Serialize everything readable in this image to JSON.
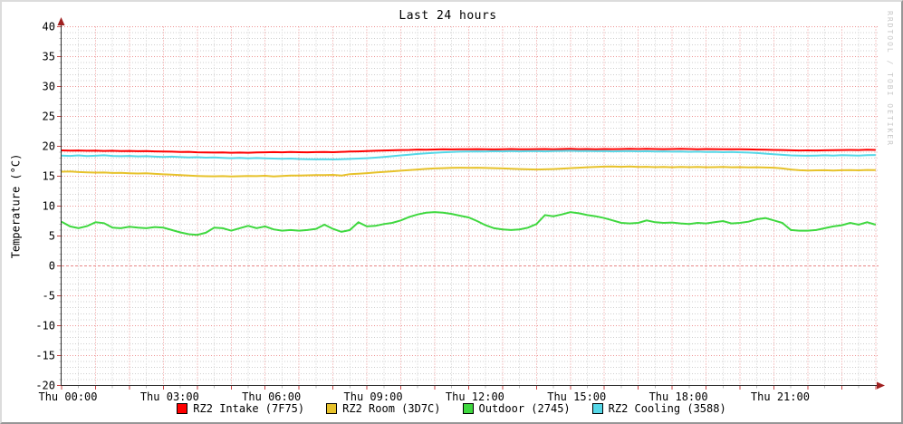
{
  "watermark": "RRDTOOL / TOBI OETIKER",
  "chart_data": {
    "type": "line",
    "title": "Last 24 hours",
    "ylabel": "Temperature (°C)",
    "x_unit": "hours",
    "x_start": 0,
    "x_end": 24,
    "x_step": 0.25,
    "ylim": [
      -20,
      40
    ],
    "grid": {
      "major_color": "#ee9393",
      "minor_color": "#cfcfcf",
      "zero_color": "#e88888",
      "major_x_every_hours": 1,
      "minor_x_every_hours": 0.5,
      "major_y_every_deg": 5,
      "minor_y_every_deg": 1
    },
    "axis_color": "#303030",
    "arrow_color": "#a02020",
    "tick_color": "#cc4444",
    "y_ticks": [
      40,
      35,
      30,
      25,
      20,
      15,
      10,
      5,
      0,
      -5,
      -10,
      -15,
      -20
    ],
    "x_labels": [
      {
        "hour": 0,
        "label": "Thu 00:00"
      },
      {
        "hour": 3,
        "label": "Thu 03:00"
      },
      {
        "hour": 6,
        "label": "Thu 06:00"
      },
      {
        "hour": 9,
        "label": "Thu 09:00"
      },
      {
        "hour": 12,
        "label": "Thu 12:00"
      },
      {
        "hour": 15,
        "label": "Thu 15:00"
      },
      {
        "hour": 18,
        "label": "Thu 18:00"
      },
      {
        "hour": 21,
        "label": "Thu 21:00"
      }
    ],
    "series": [
      {
        "name": "RZ2 Intake (7F75)",
        "color": "#ff0000",
        "values": [
          19.32,
          19.28,
          19.3,
          19.25,
          19.27,
          19.22,
          19.25,
          19.2,
          19.22,
          19.18,
          19.2,
          19.15,
          19.12,
          19.1,
          19.05,
          19.08,
          19.0,
          18.98,
          18.95,
          18.97,
          18.92,
          18.95,
          18.93,
          18.97,
          19.0,
          19.03,
          19.0,
          19.05,
          19.02,
          19.0,
          19.03,
          19.05,
          19.02,
          19.08,
          19.12,
          19.15,
          19.2,
          19.25,
          19.3,
          19.33,
          19.38,
          19.4,
          19.45,
          19.43,
          19.47,
          19.5,
          19.48,
          19.52,
          19.5,
          19.53,
          19.5,
          19.48,
          19.52,
          19.55,
          19.52,
          19.5,
          19.53,
          19.55,
          19.52,
          19.55,
          19.57,
          19.53,
          19.55,
          19.52,
          19.55,
          19.53,
          19.55,
          19.57,
          19.55,
          19.58,
          19.55,
          19.53,
          19.55,
          19.57,
          19.55,
          19.52,
          19.55,
          19.53,
          19.5,
          19.52,
          19.5,
          19.48,
          19.45,
          19.42,
          19.4,
          19.38,
          19.33,
          19.3,
          19.32,
          19.3,
          19.33,
          19.35,
          19.38,
          19.4,
          19.38,
          19.42,
          19.4
        ]
      },
      {
        "name": "RZ2 Room (3D7C)",
        "color": "#e7c22b",
        "values": [
          15.75,
          15.8,
          15.7,
          15.65,
          15.6,
          15.62,
          15.55,
          15.58,
          15.5,
          15.45,
          15.48,
          15.4,
          15.32,
          15.25,
          15.18,
          15.1,
          15.05,
          15.0,
          14.98,
          15.02,
          14.95,
          15.0,
          15.05,
          15.02,
          15.08,
          14.95,
          15.05,
          15.1,
          15.12,
          15.15,
          15.18,
          15.2,
          15.22,
          15.1,
          15.35,
          15.42,
          15.52,
          15.62,
          15.72,
          15.82,
          15.92,
          16.02,
          16.12,
          16.22,
          16.3,
          16.35,
          16.4,
          16.42,
          16.4,
          16.42,
          16.38,
          16.35,
          16.3,
          16.25,
          16.2,
          16.15,
          16.12,
          16.15,
          16.2,
          16.28,
          16.35,
          16.42,
          16.5,
          16.55,
          16.6,
          16.62,
          16.58,
          16.62,
          16.55,
          16.58,
          16.52,
          16.55,
          16.5,
          16.55,
          16.52,
          16.55,
          16.5,
          16.52,
          16.55,
          16.5,
          16.52,
          16.48,
          16.5,
          16.45,
          16.42,
          16.3,
          16.12,
          16.0,
          15.95,
          15.98,
          16.0,
          15.95,
          16.0,
          16.02,
          15.98,
          16.05,
          16.02
        ]
      },
      {
        "name": "Outdoor (2745)",
        "color": "#3fd83f",
        "values": [
          7.4,
          6.6,
          6.3,
          6.65,
          7.3,
          7.15,
          6.4,
          6.3,
          6.55,
          6.4,
          6.3,
          6.5,
          6.4,
          6.0,
          5.6,
          5.3,
          5.2,
          5.55,
          6.4,
          6.3,
          5.9,
          6.3,
          6.7,
          6.3,
          6.6,
          6.1,
          5.9,
          6.0,
          5.9,
          6.0,
          6.2,
          6.9,
          6.2,
          5.7,
          6.0,
          7.3,
          6.6,
          6.7,
          7.0,
          7.2,
          7.6,
          8.2,
          8.6,
          8.9,
          9.0,
          8.9,
          8.7,
          8.4,
          8.1,
          7.5,
          6.8,
          6.3,
          6.1,
          6.0,
          6.1,
          6.4,
          7.0,
          8.5,
          8.3,
          8.6,
          9.0,
          8.8,
          8.5,
          8.3,
          8.0,
          7.6,
          7.2,
          7.1,
          7.2,
          7.6,
          7.3,
          7.2,
          7.25,
          7.1,
          7.0,
          7.2,
          7.1,
          7.3,
          7.5,
          7.1,
          7.2,
          7.4,
          7.8,
          8.0,
          7.6,
          7.2,
          6.0,
          5.9,
          5.9,
          6.0,
          6.3,
          6.6,
          6.8,
          7.2,
          6.9,
          7.3,
          6.9
        ]
      },
      {
        "name": "RZ2 Cooling (3588)",
        "color": "#55d7e7",
        "values": [
          18.45,
          18.4,
          18.48,
          18.38,
          18.42,
          18.5,
          18.4,
          18.35,
          18.4,
          18.32,
          18.35,
          18.28,
          18.22,
          18.28,
          18.2,
          18.15,
          18.18,
          18.1,
          18.15,
          18.08,
          18.02,
          18.08,
          18.0,
          18.05,
          17.98,
          17.95,
          17.92,
          17.95,
          17.88,
          17.85,
          17.82,
          17.85,
          17.8,
          17.85,
          17.9,
          17.95,
          18.02,
          18.1,
          18.22,
          18.35,
          18.48,
          18.6,
          18.72,
          18.82,
          18.92,
          19.0,
          19.05,
          19.1,
          19.12,
          19.15,
          19.12,
          19.18,
          19.15,
          19.2,
          19.15,
          19.18,
          19.2,
          19.15,
          19.2,
          19.22,
          19.25,
          19.2,
          19.22,
          19.18,
          19.2,
          19.15,
          19.18,
          19.2,
          19.15,
          19.18,
          19.12,
          19.15,
          19.1,
          19.12,
          19.08,
          19.1,
          19.05,
          19.08,
          19.02,
          19.05,
          19.0,
          18.95,
          18.88,
          18.78,
          18.68,
          18.58,
          18.48,
          18.45,
          18.42,
          18.45,
          18.5,
          18.45,
          18.52,
          18.48,
          18.45,
          18.52,
          18.55
        ]
      }
    ]
  }
}
